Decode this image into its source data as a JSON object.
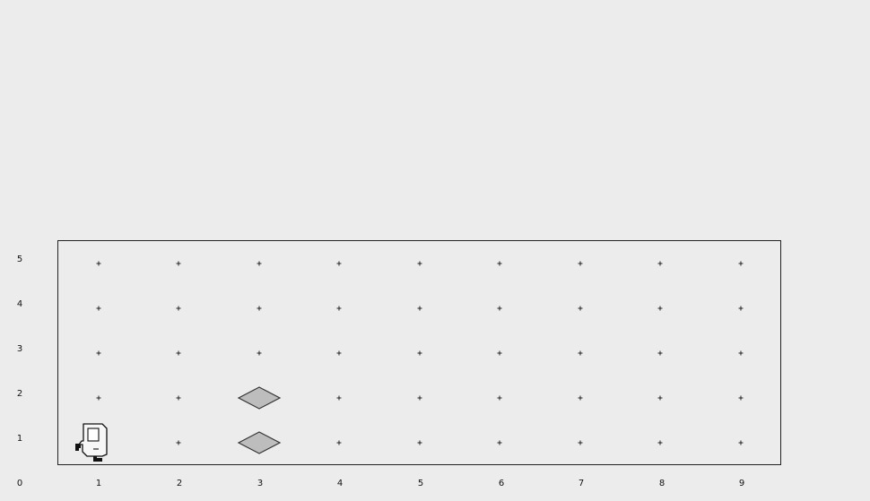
{
  "world": {
    "columns": 9,
    "rows": 5
  },
  "axes": {
    "x_labels": [
      "0",
      "1",
      "2",
      "3",
      "4",
      "5",
      "6",
      "7",
      "8",
      "9"
    ],
    "y_labels": [
      "1",
      "2",
      "3",
      "4",
      "5"
    ]
  },
  "robot": {
    "icon": "robot-icon",
    "street": 1,
    "avenue": 1,
    "facing": "east"
  },
  "beepers": [
    {
      "avenue": 3,
      "street": 1
    },
    {
      "avenue": 3,
      "street": 2
    }
  ],
  "colors": {
    "background": "#ececec",
    "border": "#222222",
    "beeper_fill": "#bdbdbd",
    "beeper_stroke": "#333333"
  }
}
